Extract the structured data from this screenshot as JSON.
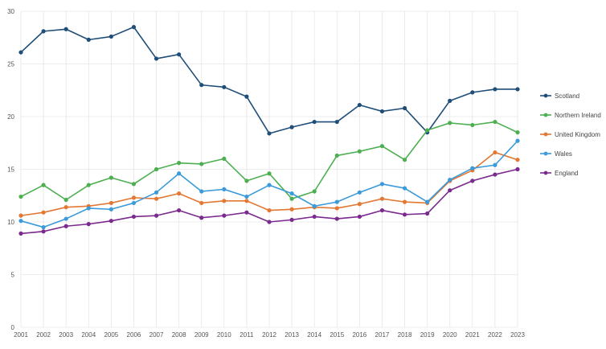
{
  "colors": {
    "background": "#ffffff",
    "grid": "#e6e6e6",
    "axis_text": "#555555"
  },
  "chart_data": {
    "type": "line",
    "title": "",
    "xlabel": "",
    "ylabel": "",
    "ylim": [
      0,
      30
    ],
    "y_ticks": [
      0,
      5,
      10,
      15,
      20,
      25,
      30
    ],
    "grid": true,
    "legend_placement": "right",
    "x": [
      "2001",
      "2002",
      "2003",
      "2004",
      "2005",
      "2006",
      "2007",
      "2008",
      "2009",
      "2010",
      "2011",
      "2012",
      "2013",
      "2014",
      "2015",
      "2016",
      "2017",
      "2018",
      "2019",
      "2020",
      "2021",
      "2022",
      "2023"
    ],
    "series": [
      {
        "name": "Scotland",
        "color": "#1f4e79",
        "values": [
          26.1,
          28.1,
          28.3,
          27.3,
          27.6,
          28.5,
          25.5,
          25.9,
          23.0,
          22.8,
          21.9,
          18.4,
          19.0,
          19.5,
          19.5,
          21.1,
          20.5,
          20.8,
          18.5,
          21.5,
          22.3,
          22.6,
          22.6
        ]
      },
      {
        "name": "Northern Ireland",
        "color": "#4caf50",
        "values": [
          12.4,
          13.5,
          12.1,
          13.5,
          14.2,
          13.6,
          15.0,
          15.6,
          15.5,
          16.0,
          13.9,
          14.6,
          12.2,
          12.9,
          16.3,
          16.7,
          17.2,
          15.9,
          18.7,
          19.4,
          19.2,
          19.5,
          18.5
        ]
      },
      {
        "name": "United Kingdom",
        "color": "#e27833",
        "values": [
          10.6,
          10.9,
          11.4,
          11.5,
          11.8,
          12.3,
          12.2,
          12.7,
          11.8,
          12.0,
          12.0,
          11.1,
          11.2,
          11.4,
          11.3,
          11.7,
          12.2,
          11.9,
          11.8,
          13.9,
          14.9,
          16.6,
          15.9
        ]
      },
      {
        "name": "Wales",
        "color": "#3b9ad9",
        "values": [
          10.1,
          9.5,
          10.3,
          11.3,
          11.2,
          11.8,
          12.8,
          14.6,
          12.9,
          13.1,
          12.4,
          13.5,
          12.7,
          11.5,
          11.9,
          12.8,
          13.6,
          13.2,
          11.9,
          14.0,
          15.1,
          15.4,
          17.7
        ]
      },
      {
        "name": "England",
        "color": "#7b2a8e",
        "values": [
          8.9,
          9.1,
          9.6,
          9.8,
          10.1,
          10.5,
          10.6,
          11.1,
          10.4,
          10.6,
          10.9,
          10.0,
          10.2,
          10.5,
          10.3,
          10.5,
          11.1,
          10.7,
          10.8,
          13.0,
          13.9,
          14.5,
          15.0
        ]
      }
    ]
  }
}
